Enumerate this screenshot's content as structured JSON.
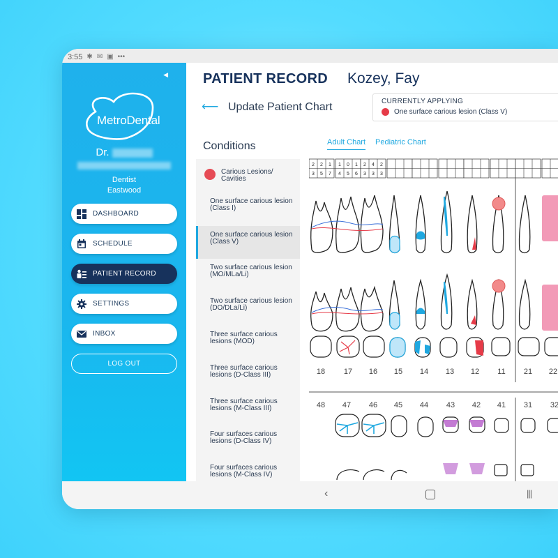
{
  "statusbar": {
    "time": "3:55"
  },
  "sidebar": {
    "logo_text": "MetroDental",
    "doctor_prefix": "Dr.",
    "role": "Dentist",
    "location": "Eastwood",
    "nav": [
      {
        "label": "DASHBOARD",
        "icon": "dashboard-icon",
        "active": false
      },
      {
        "label": "SCHEDULE",
        "icon": "calendar-icon",
        "active": false
      },
      {
        "label": "PATIENT RECORD",
        "icon": "patient-record-icon",
        "active": true
      },
      {
        "label": "SETTINGS",
        "icon": "gear-icon",
        "active": false
      },
      {
        "label": "INBOX",
        "icon": "mail-icon",
        "active": false
      }
    ],
    "logout": "LOG OUT"
  },
  "header": {
    "title": "PATIENT RECORD",
    "patient": "Kozey, Fay",
    "subtitle": "Update Patient Chart"
  },
  "applying": {
    "title": "CURRENTLY APPLYING",
    "value": "One surface carious lesion (Class V)"
  },
  "conditions": {
    "title": "Conditions",
    "items": [
      "Carious Lesions/ Cavities",
      "One surface carious lesion (Class I)",
      "One surface carious lesion (Class V)",
      "Two surface carious lesion (MO/MLa/Li)",
      "Two surface carious lesion (DO/DLa/Li)",
      "Three surface carious lesions (MOD)",
      "Three surface carious lesions (D-Class III)",
      "Three surface carious lesions (M-Class III)",
      "Four surfaces carious lesions (D-Class IV)",
      "Four surfaces carious lesions (M-Class IV)"
    ],
    "selected_index": 2
  },
  "tabs": [
    "Adult Chart",
    "Pediatric Chart"
  ],
  "active_tab": 0,
  "chart": {
    "grid_row1": [
      "2",
      "2",
      "1",
      "1",
      "0",
      "1",
      "2",
      "4",
      "2"
    ],
    "grid_row2": [
      "3",
      "5",
      "7",
      "4",
      "5",
      "6",
      "3",
      "3",
      "3"
    ],
    "upper_numbers": [
      "18",
      "17",
      "16",
      "15",
      "14",
      "13",
      "12",
      "11",
      "21",
      "22"
    ],
    "lower_numbers": [
      "48",
      "47",
      "46",
      "45",
      "44",
      "43",
      "42",
      "41",
      "31",
      "32"
    ]
  },
  "colors": {
    "sidebar": "#1fb1ec",
    "active_nav": "#17325c",
    "accent": "#1fa8e0",
    "lesion_red": "#e63b48",
    "highlight_pink": "#f29ab7"
  }
}
